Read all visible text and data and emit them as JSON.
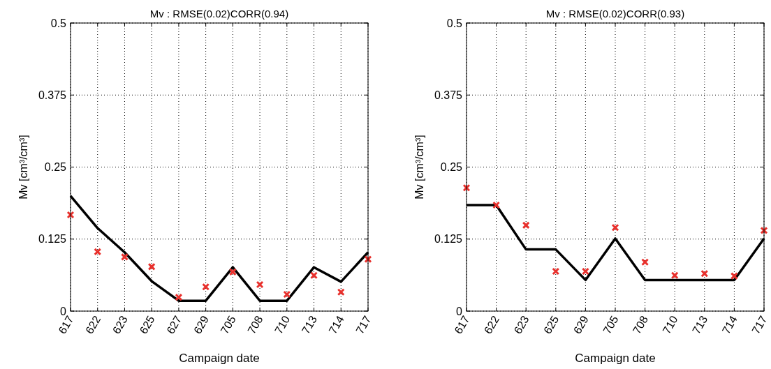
{
  "chart_data": [
    {
      "type": "line",
      "title": "Mv : RMSE(0.02)CORR(0.94)",
      "xlabel": "Campaign date",
      "ylabel": "Mv [cm³/cm³]",
      "categories": [
        "617",
        "622",
        "623",
        "625",
        "627",
        "629",
        "705",
        "708",
        "710",
        "713",
        "714",
        "717"
      ],
      "ylim": [
        0,
        0.5
      ],
      "yticks": [
        0,
        0.125,
        0.25,
        0.375,
        0.5
      ],
      "grid": true,
      "series": [
        {
          "color": "#000000",
          "marker": "none",
          "values": [
            0.2,
            0.144,
            0.102,
            0.052,
            0.018,
            0.018,
            0.076,
            0.018,
            0.018,
            0.076,
            0.051,
            0.102
          ]
        },
        {
          "type": "scatter",
          "color": "#e8302c",
          "marker": "cross",
          "values": [
            0.167,
            0.103,
            0.094,
            0.077,
            0.024,
            0.042,
            0.068,
            0.046,
            0.029,
            0.062,
            0.033,
            0.09
          ]
        }
      ]
    },
    {
      "type": "line",
      "title": "Mv : RMSE(0.02)CORR(0.93)",
      "xlabel": "Campaign date",
      "ylabel": "Mv [cm³/cm³]",
      "categories": [
        "617",
        "622",
        "623",
        "625",
        "629",
        "705",
        "708",
        "710",
        "713",
        "714",
        "717"
      ],
      "ylim": [
        0,
        0.5
      ],
      "yticks": [
        0,
        0.125,
        0.25,
        0.375,
        0.5
      ],
      "grid": true,
      "series": [
        {
          "color": "#000000",
          "marker": "none",
          "values": [
            0.184,
            0.184,
            0.107,
            0.107,
            0.054,
            0.126,
            0.054,
            0.054,
            0.054,
            0.054,
            0.126
          ]
        },
        {
          "type": "scatter",
          "color": "#e8302c",
          "marker": "cross",
          "values": [
            0.214,
            0.184,
            0.149,
            0.069,
            0.069,
            0.145,
            0.085,
            0.062,
            0.065,
            0.061,
            0.14
          ]
        }
      ]
    }
  ]
}
